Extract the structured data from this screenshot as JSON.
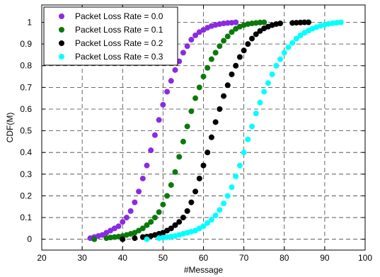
{
  "chart_data": {
    "type": "scatter",
    "title": "",
    "xlabel": "#Message",
    "ylabel": "CDF(M)",
    "xlim": [
      20,
      100
    ],
    "ylim": [
      -0.05,
      1.08
    ],
    "xticks": [
      20,
      30,
      40,
      50,
      60,
      70,
      80,
      90,
      100
    ],
    "yticks": [
      0,
      0.1,
      0.2,
      0.3,
      0.4,
      0.5,
      0.6,
      0.7,
      0.8,
      0.9,
      1
    ],
    "ytick_labels": [
      "0",
      "0.1",
      "0.2",
      "0.3",
      "0.4",
      "0.5",
      "0.6",
      "0.7",
      "0.8",
      "0.9",
      "1"
    ],
    "grid": true,
    "legend_position": "top-left",
    "series": [
      {
        "name": "Packet Loss Rate = 0.0",
        "color": "#8a2be2",
        "x": [
          32,
          33,
          34,
          35,
          36,
          37,
          38,
          39,
          40,
          41,
          42,
          43,
          44,
          45,
          46,
          47,
          48,
          49,
          50,
          51,
          52,
          53,
          54,
          55,
          56,
          57,
          58,
          59,
          60,
          61,
          62,
          63,
          64,
          65,
          66,
          67,
          68
        ],
        "y": [
          0.005,
          0.01,
          0.015,
          0.02,
          0.03,
          0.04,
          0.05,
          0.06,
          0.08,
          0.1,
          0.13,
          0.17,
          0.22,
          0.28,
          0.34,
          0.41,
          0.48,
          0.55,
          0.62,
          0.68,
          0.73,
          0.78,
          0.82,
          0.86,
          0.89,
          0.92,
          0.94,
          0.955,
          0.965,
          0.975,
          0.983,
          0.988,
          0.992,
          0.995,
          0.997,
          0.998,
          1.0
        ]
      },
      {
        "name": "Packet Loss Rate = 0.1",
        "color": "#0a7a0a",
        "x": [
          33,
          36,
          37,
          38,
          39,
          40,
          41,
          42,
          43,
          44,
          45,
          46,
          47,
          48,
          49,
          50,
          51,
          52,
          53,
          54,
          55,
          56,
          57,
          58,
          59,
          60,
          61,
          62,
          63,
          64,
          65,
          66,
          67,
          68,
          69,
          70,
          71,
          72,
          73,
          74,
          75
        ],
        "y": [
          0.0,
          0.005,
          0.008,
          0.01,
          0.012,
          0.015,
          0.02,
          0.025,
          0.03,
          0.04,
          0.05,
          0.065,
          0.08,
          0.1,
          0.125,
          0.16,
          0.2,
          0.25,
          0.31,
          0.38,
          0.45,
          0.52,
          0.59,
          0.65,
          0.7,
          0.75,
          0.79,
          0.83,
          0.86,
          0.89,
          0.915,
          0.935,
          0.955,
          0.97,
          0.98,
          0.987,
          0.992,
          0.995,
          0.997,
          0.999,
          1.0
        ]
      },
      {
        "name": "Packet Loss Rate = 0.2",
        "color": "#000000",
        "x": [
          40,
          43,
          45,
          46,
          47,
          48,
          49,
          50,
          51,
          52,
          53,
          54,
          55,
          56,
          57,
          58,
          59,
          60,
          61,
          62,
          63,
          64,
          65,
          66,
          67,
          68,
          69,
          70,
          71,
          72,
          73,
          74,
          75,
          76,
          77,
          78,
          79,
          82,
          83,
          84,
          85,
          86
        ],
        "y": [
          0.0,
          0.005,
          0.01,
          0.012,
          0.015,
          0.02,
          0.025,
          0.03,
          0.04,
          0.05,
          0.065,
          0.08,
          0.1,
          0.13,
          0.17,
          0.22,
          0.28,
          0.34,
          0.4,
          0.47,
          0.54,
          0.6,
          0.66,
          0.71,
          0.76,
          0.8,
          0.84,
          0.87,
          0.9,
          0.925,
          0.945,
          0.96,
          0.972,
          0.98,
          0.987,
          0.992,
          0.995,
          0.997,
          0.998,
          0.999,
          1.0,
          1.0
        ]
      },
      {
        "name": "Packet Loss Rate = 0.3",
        "color": "#00ffff",
        "x": [
          46,
          49,
          50,
          51,
          52,
          53,
          54,
          55,
          56,
          57,
          58,
          59,
          60,
          61,
          62,
          63,
          64,
          65,
          66,
          67,
          68,
          69,
          70,
          71,
          72,
          73,
          74,
          75,
          76,
          77,
          78,
          79,
          80,
          81,
          82,
          83,
          84,
          85,
          86,
          87,
          88,
          89,
          90,
          91,
          92,
          93,
          94
        ],
        "y": [
          0.0,
          0.005,
          0.007,
          0.01,
          0.012,
          0.015,
          0.02,
          0.025,
          0.03,
          0.035,
          0.04,
          0.05,
          0.06,
          0.075,
          0.09,
          0.11,
          0.135,
          0.165,
          0.2,
          0.24,
          0.29,
          0.34,
          0.4,
          0.46,
          0.52,
          0.58,
          0.63,
          0.68,
          0.72,
          0.76,
          0.8,
          0.83,
          0.86,
          0.885,
          0.905,
          0.925,
          0.94,
          0.952,
          0.962,
          0.971,
          0.978,
          0.984,
          0.989,
          0.993,
          0.996,
          0.998,
          1.0
        ]
      }
    ]
  }
}
